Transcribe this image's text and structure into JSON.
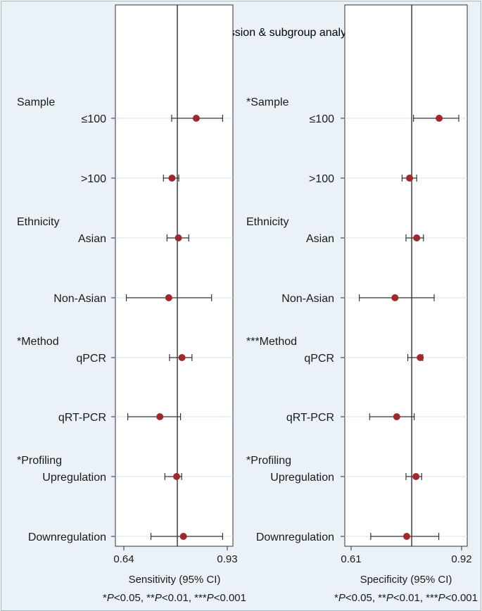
{
  "colors": {
    "background": "#eaf2f8",
    "plot_background": "#ffffff",
    "marker": "#a0282d",
    "gridline": "#d5dff0",
    "text": "#1a1a1a"
  },
  "chart_data": {
    "type": "forest",
    "title": "Univariable meta-regression & subgroup analyses",
    "row_labels": [
      [
        "Sample",
        "≤100"
      ],
      [
        ">100"
      ],
      [
        "Ethnicity",
        "Asian"
      ],
      [
        "Non-Asian"
      ],
      [
        "Method",
        "qPCR"
      ],
      [
        "qRT-PCR"
      ],
      [
        "Profiling",
        "Upregulation"
      ],
      [
        "Downregulation"
      ]
    ],
    "panels": [
      {
        "xlabel": "Sensitivity (95% CI)",
        "xlim": [
          0.64,
          0.93
        ],
        "xticks": [
          "0.64",
          "0.93"
        ],
        "reference": 0.79,
        "group_headers": [
          "Sample",
          "Ethnicity",
          "*Method",
          "*Profiling"
        ],
        "estimates": [
          0.843,
          0.775,
          0.793,
          0.766,
          0.803,
          0.741,
          0.788,
          0.807
        ],
        "ci_low": [
          0.774,
          0.751,
          0.761,
          0.647,
          0.768,
          0.651,
          0.755,
          0.716
        ],
        "ci_high": [
          0.917,
          0.794,
          0.822,
          0.886,
          0.831,
          0.799,
          0.802,
          0.917
        ],
        "footnote": "*P<0.05, **P<0.01, ***P<0.001"
      },
      {
        "xlabel": "Specificity (95% CI)",
        "xlim": [
          0.61,
          0.92
        ],
        "xticks": [
          "0.61",
          "0.92"
        ],
        "reference": 0.78,
        "group_headers": [
          "*Sample",
          "Ethnicity",
          "***Method",
          "*Profiling"
        ],
        "estimates": [
          0.857,
          0.774,
          0.794,
          0.733,
          0.804,
          0.738,
          0.792,
          0.766
        ],
        "ci_low": [
          0.785,
          0.753,
          0.764,
          0.633,
          0.769,
          0.662,
          0.764,
          0.665
        ],
        "ci_high": [
          0.912,
          0.794,
          0.813,
          0.843,
          0.811,
          0.787,
          0.808,
          0.856
        ],
        "footnote": "*P<0.05, **P<0.01, ***P<0.001"
      }
    ]
  }
}
